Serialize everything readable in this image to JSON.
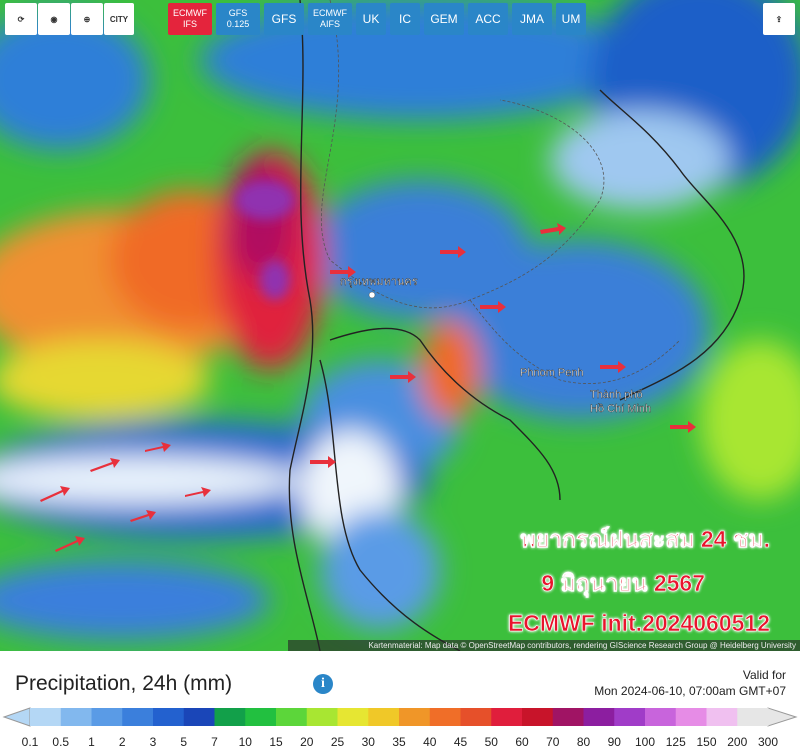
{
  "toolbar": {
    "tools": [
      "CITY"
    ],
    "models": [
      {
        "lines": [
          "ECMWF",
          "IFS"
        ],
        "active": true
      },
      {
        "lines": [
          "GFS",
          "0.125"
        ],
        "active": false
      },
      {
        "lines": [
          "GFS"
        ],
        "active": false
      },
      {
        "lines": [
          "ECMWF",
          "AIFS"
        ],
        "active": false
      },
      {
        "lines": [
          "UK"
        ],
        "active": false
      },
      {
        "lines": [
          "IC"
        ],
        "active": false
      },
      {
        "lines": [
          "GEM"
        ],
        "active": false
      },
      {
        "lines": [
          "ACC"
        ],
        "active": false
      },
      {
        "lines": [
          "JMA"
        ],
        "active": false
      },
      {
        "lines": [
          "UM"
        ],
        "active": false
      }
    ]
  },
  "map": {
    "places": [
      "กรุงเทพมหานคร",
      "Phnom Penh",
      "Thành phố",
      "Hồ Chí Minh"
    ],
    "overlay": [
      "พยากรณ์ฝนสะสม 24 ชม.",
      "9 มิถุนายน 2567",
      "ECMWF init.2024060512"
    ],
    "attribution": "Kartenmaterial: Map data © OpenStreetMap contributors, rendering GIScience Research Group @ Heidelberg University"
  },
  "footer": {
    "title": "Precipitation, 24h (mm)",
    "valid_label": "Valid for",
    "valid_time": "Mon 2024-06-10, 07:00am GMT+07",
    "scale": {
      "labels": [
        "0.1",
        "0.5",
        "1",
        "2",
        "3",
        "5",
        "7",
        "10",
        "15",
        "20",
        "25",
        "30",
        "35",
        "40",
        "45",
        "50",
        "60",
        "70",
        "80",
        "90",
        "100",
        "125",
        "150",
        "200",
        "300"
      ],
      "colors": [
        "#b4d7f5",
        "#82b8ee",
        "#5a9be6",
        "#3b7fdc",
        "#2361cf",
        "#1a46b8",
        "#12a04a",
        "#22c040",
        "#5cd63a",
        "#a8e632",
        "#e6e632",
        "#f0c828",
        "#f09628",
        "#f06e28",
        "#e6502a",
        "#e01e3c",
        "#c8142a",
        "#a01464",
        "#8c1ea0",
        "#a03cc8",
        "#c864dc",
        "#e68ce6",
        "#f0c0f0",
        "#e6e6e6"
      ]
    }
  }
}
